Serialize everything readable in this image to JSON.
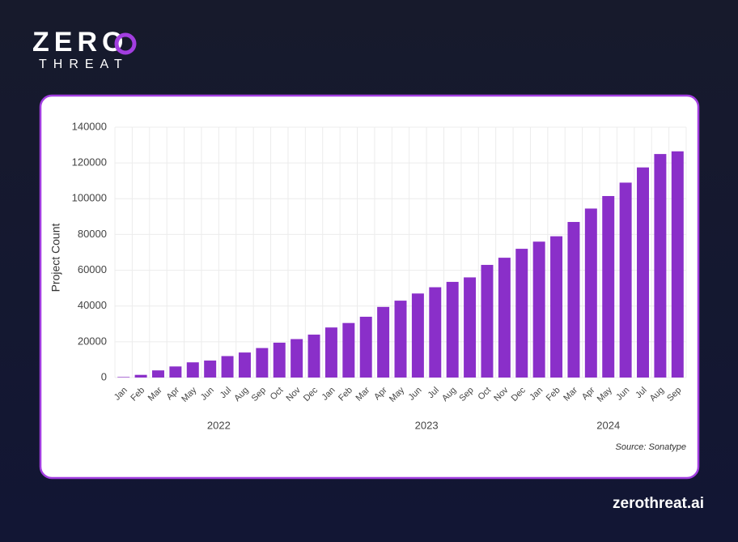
{
  "logo": {
    "top": "ZERO",
    "bottom": "THREAT"
  },
  "footer": "zerothreat.ai",
  "chart_data": {
    "type": "bar",
    "ylabel": "Project Count",
    "source": "Source: Sonatype",
    "categories": [
      "Jan",
      "Feb",
      "Mar",
      "Apr",
      "May",
      "Jun",
      "Jul",
      "Aug",
      "Sep",
      "Oct",
      "Nov",
      "Dec",
      "Jan",
      "Feb",
      "Mar",
      "Apr",
      "May",
      "Jun",
      "Jul",
      "Aug",
      "Sep",
      "Oct",
      "Nov",
      "Dec",
      "Jan",
      "Feb",
      "Mar",
      "Apr",
      "May",
      "Jun",
      "Jul",
      "Aug",
      "Sep"
    ],
    "groups": [
      "2022",
      "2023",
      "2024"
    ],
    "values": [
      300,
      1500,
      4000,
      6200,
      8500,
      9500,
      12000,
      14000,
      16500,
      19500,
      21500,
      24000,
      28000,
      30500,
      34000,
      39500,
      43000,
      47000,
      50500,
      53500,
      56000,
      63000,
      67000,
      72000,
      76000,
      79000,
      87000,
      94500,
      101500,
      109000,
      117500,
      125000,
      126500
    ],
    "color": "#8a2fc9",
    "ylim": [
      0,
      140000
    ],
    "yticks": [
      0,
      20000,
      40000,
      60000,
      80000,
      100000,
      120000,
      140000
    ],
    "grid": true
  }
}
